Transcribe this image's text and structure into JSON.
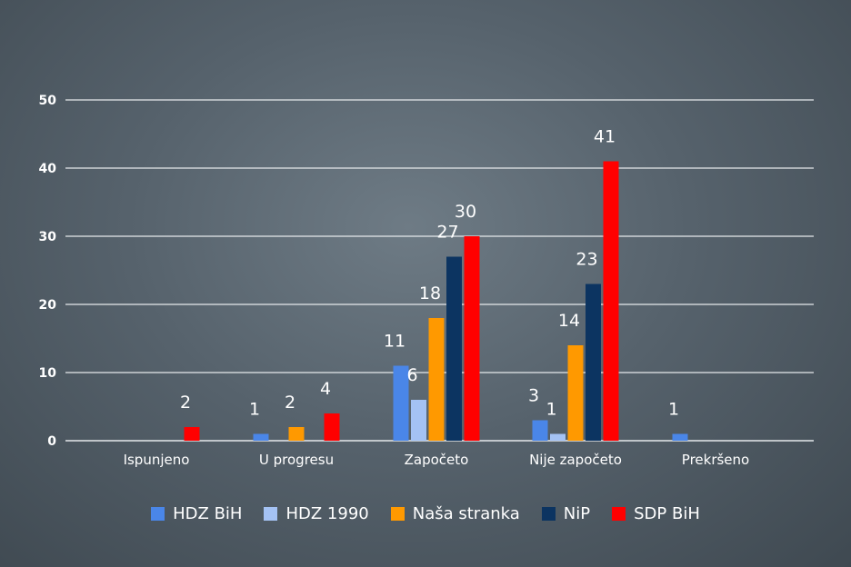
{
  "chart_data": {
    "type": "bar",
    "title": "",
    "xlabel": "",
    "ylabel": "",
    "categories": [
      "Ispunjeno",
      "U progresu",
      "Započeto",
      "Nije započeto",
      "Prekršeno"
    ],
    "ylim": [
      0,
      50
    ],
    "yticks": [
      0,
      10,
      20,
      30,
      40,
      50
    ],
    "grid": true,
    "legend_position": "bottom",
    "series": [
      {
        "name": "HDZ BiH",
        "color": "#4a86e8",
        "values": [
          0,
          1,
          11,
          3,
          1
        ]
      },
      {
        "name": "HDZ 1990",
        "color": "#a4c2f4",
        "values": [
          0,
          0,
          6,
          1,
          0
        ]
      },
      {
        "name": "Naša stranka",
        "color": "#ff9900",
        "values": [
          0,
          2,
          18,
          14,
          0
        ]
      },
      {
        "name": "NiP",
        "color": "#0c3461",
        "values": [
          0,
          0,
          27,
          23,
          0
        ]
      },
      {
        "name": "SDP BiH",
        "color": "#ff0000",
        "values": [
          2,
          4,
          30,
          41,
          0
        ]
      }
    ]
  }
}
